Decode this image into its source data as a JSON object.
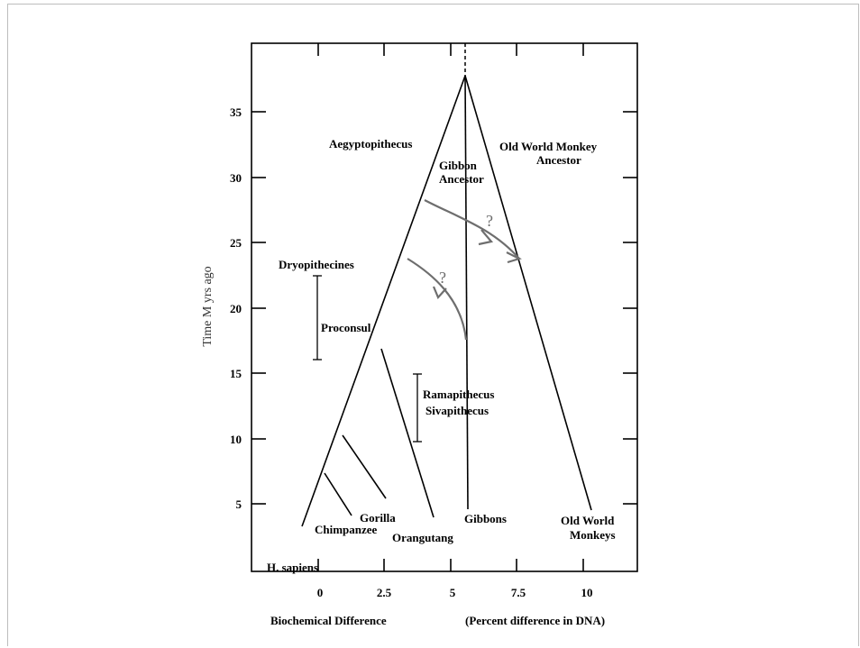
{
  "axes": {
    "y_label": "Time M yrs ago",
    "x_label": "Biochemical Difference",
    "x_label_paren": "(Percent difference in DNA)",
    "y_ticks": [
      "35",
      "30",
      "25",
      "20",
      "15",
      "10",
      "5"
    ],
    "x_ticks": [
      "0",
      "2.5",
      "5",
      "7.5",
      "10"
    ]
  },
  "labels": {
    "aegyptopithecus": "Aegyptopithecus",
    "gibbon_ancestor_1": "Gibbon",
    "gibbon_ancestor_2": "Ancestor",
    "owm_ancestor_1": "Old World Monkey",
    "owm_ancestor_2": "Ancestor",
    "dryopithecines": "Dryopithecines",
    "proconsul": "Proconsul",
    "ramapithecus": "Ramapithecus",
    "sivapithecus": "Sivapithecus",
    "h_sapiens": "H.  sapiens",
    "chimpanzee": "Chimpanzee",
    "gorilla": "Gorilla",
    "orangutang": "Orangutang",
    "gibbons": "Gibbons",
    "owm_1": "Old World",
    "owm_2": "Monkeys",
    "question_1": "?",
    "question_2": "?"
  }
}
